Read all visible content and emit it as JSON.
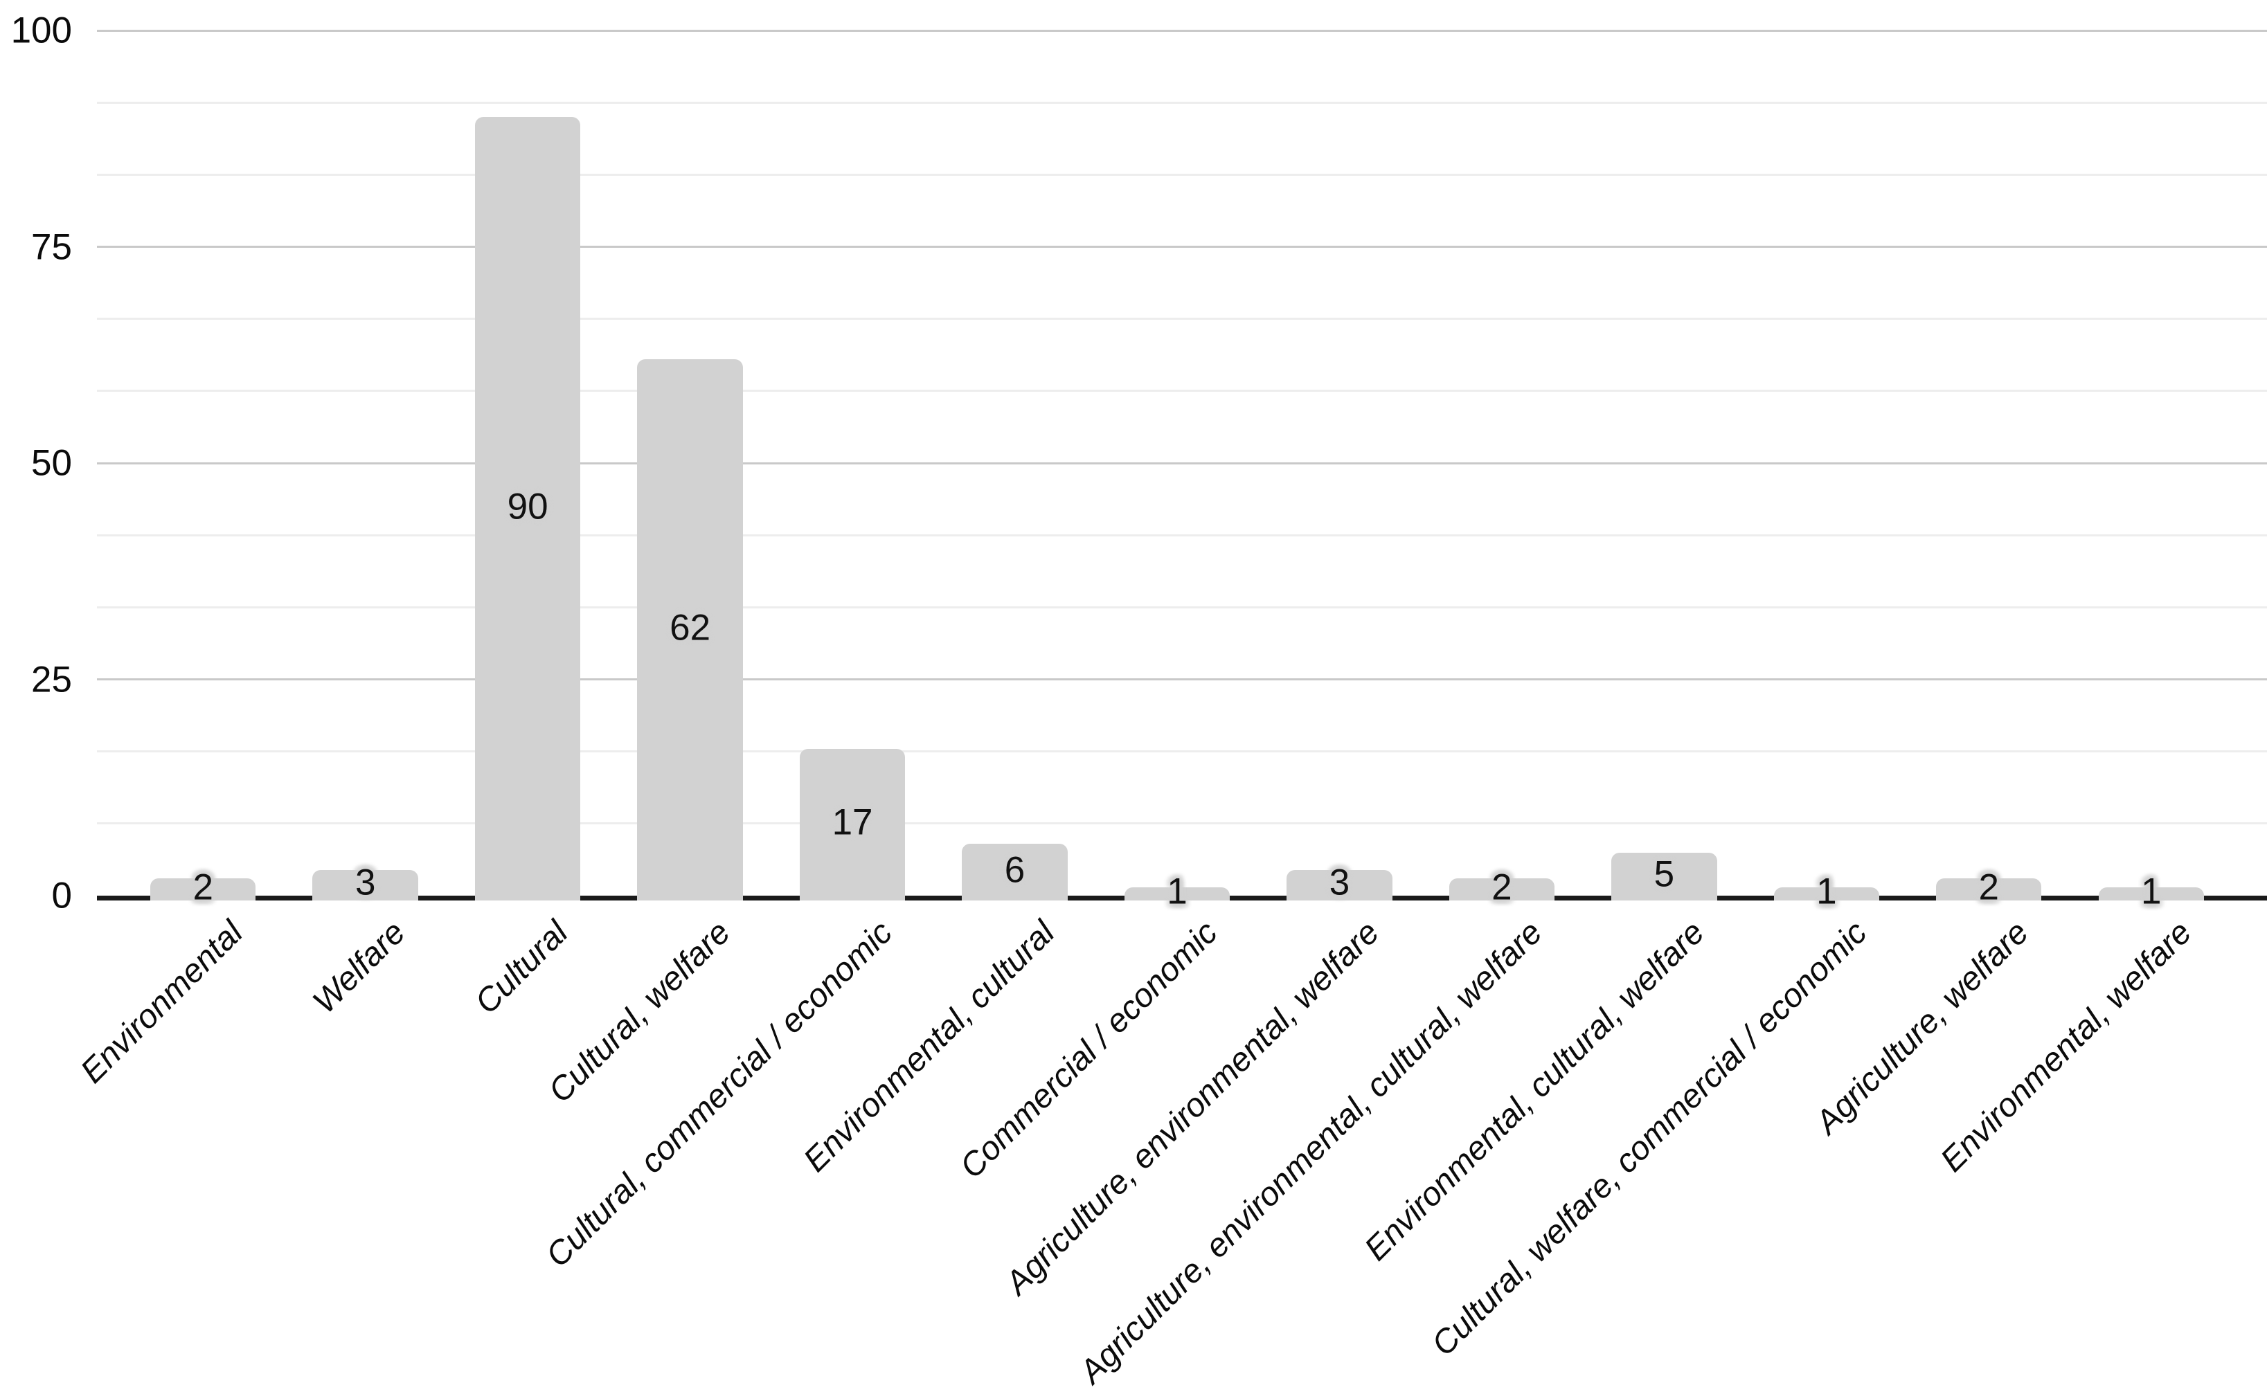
{
  "chart_data": {
    "type": "bar",
    "title": "",
    "categories": [
      "Environmental",
      "Welfare",
      "Cultural",
      "Cultural, welfare",
      "Cultural, commercial / economic",
      "Environmental, cultural",
      "Commercial / economic",
      "Agriculture, environmental, welfare",
      "Agriculture, environmental, cultural, welfare",
      "Environmental, cultural, welfare",
      "Cultural, welfare, commercial / economic",
      "Agriculture, welfare",
      "Environmental, welfare"
    ],
    "values": [
      2,
      3,
      90,
      62,
      17,
      6,
      1,
      3,
      2,
      5,
      1,
      2,
      1
    ],
    "bar_value_labels": [
      "2",
      "3",
      "90",
      "62",
      "17",
      "6",
      "1",
      "3",
      "2",
      "5",
      "1",
      "2",
      "1"
    ],
    "xlabel": "",
    "ylabel": "",
    "ylim": [
      0,
      100
    ],
    "y_ticks": [
      0,
      25,
      50,
      75,
      100
    ],
    "y_tick_labels": [
      "0",
      "25",
      "50",
      "75",
      "100"
    ],
    "minor_gridlines_per_major_interval": 2,
    "grid": true,
    "legend_position": "none",
    "colors": {
      "bar_fill": "#d2d2d2",
      "major_gridline": "#c9c9c9",
      "minor_gridline": "#ededed",
      "axis_baseline": "#1a1a1a",
      "text": "#0b0b0b",
      "background": "#ffffff"
    }
  }
}
